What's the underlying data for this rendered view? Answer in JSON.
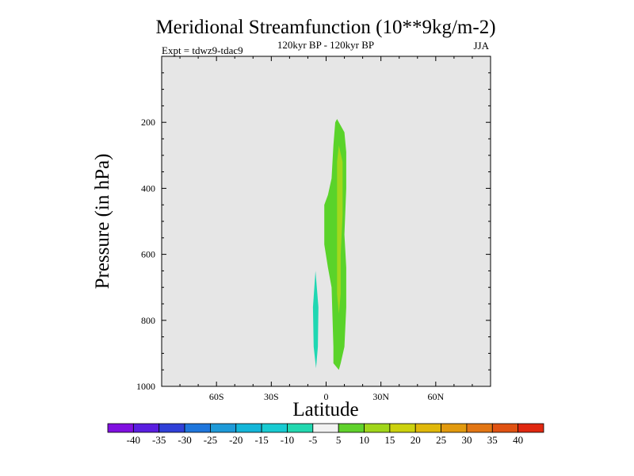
{
  "chart_data": {
    "type": "heatmap",
    "title": "Meridional Streamfunction (10**9kg/m-2)",
    "subtitle": "120kyr BP - 120kyr BP",
    "experiment": "Expt = tdwz9-tdac9",
    "season": "JJA",
    "xlabel": "Latitude",
    "ylabel": "Pressure (in hPa)",
    "xlim": [
      -90,
      90
    ],
    "ylim": [
      1000,
      0
    ],
    "x_ticks": [
      {
        "value": -60,
        "label": "60S"
      },
      {
        "value": -30,
        "label": "30S"
      },
      {
        "value": 0,
        "label": "0"
      },
      {
        "value": 30,
        "label": "30N"
      },
      {
        "value": 60,
        "label": "60N"
      }
    ],
    "y_ticks": [
      {
        "value": 200,
        "label": "200"
      },
      {
        "value": 400,
        "label": "400"
      },
      {
        "value": 600,
        "label": "600"
      },
      {
        "value": 800,
        "label": "800"
      },
      {
        "value": 1000,
        "label": "1000"
      }
    ],
    "background_color": "#e6e6e6",
    "contours": [
      {
        "level": "5 to 10",
        "color": "#5ad32a",
        "points": [
          [
            6,
            190
          ],
          [
            10,
            230
          ],
          [
            11,
            290
          ],
          [
            11,
            400
          ],
          [
            10,
            540
          ],
          [
            11,
            640
          ],
          [
            11,
            760
          ],
          [
            10,
            880
          ],
          [
            8,
            930
          ],
          [
            7,
            950
          ],
          [
            4,
            930
          ],
          [
            4,
            880
          ],
          [
            3,
            700
          ],
          [
            1,
            640
          ],
          [
            -1,
            570
          ],
          [
            -1,
            450
          ],
          [
            1,
            420
          ],
          [
            3,
            370
          ],
          [
            4,
            270
          ],
          [
            5,
            200
          ]
        ]
      },
      {
        "level": "10 to 15",
        "color": "#a2d81c",
        "points": [
          [
            7,
            270
          ],
          [
            9,
            320
          ],
          [
            9,
            480
          ],
          [
            8,
            600
          ],
          [
            8,
            720
          ],
          [
            7,
            780
          ],
          [
            6,
            720
          ],
          [
            6,
            600
          ],
          [
            6,
            480
          ],
          [
            6,
            320
          ]
        ]
      },
      {
        "level": "-10 to -5",
        "color": "#1fd7b2",
        "points": [
          [
            -5.8,
            650
          ],
          [
            -4.2,
            760
          ],
          [
            -4.5,
            880
          ],
          [
            -5.5,
            945
          ],
          [
            -6.8,
            880
          ],
          [
            -7.2,
            760
          ]
        ]
      }
    ],
    "colorbar": {
      "colors": [
        "#8010e0",
        "#5a1ee0",
        "#3040d8",
        "#1f76dc",
        "#1e9ad8",
        "#14b6d9",
        "#18cbd2",
        "#22d8b0",
        "#f2f2f2",
        "#60d22c",
        "#a0d61a",
        "#ccd20e",
        "#e0b80a",
        "#e29a0e",
        "#e27614",
        "#e05212",
        "#e02810"
      ],
      "labels": [
        "-40",
        "-35",
        "-30",
        "-25",
        "-20",
        "-15",
        "-10",
        "-5",
        "5",
        "10",
        "15",
        "20",
        "25",
        "30",
        "35",
        "40"
      ]
    }
  }
}
